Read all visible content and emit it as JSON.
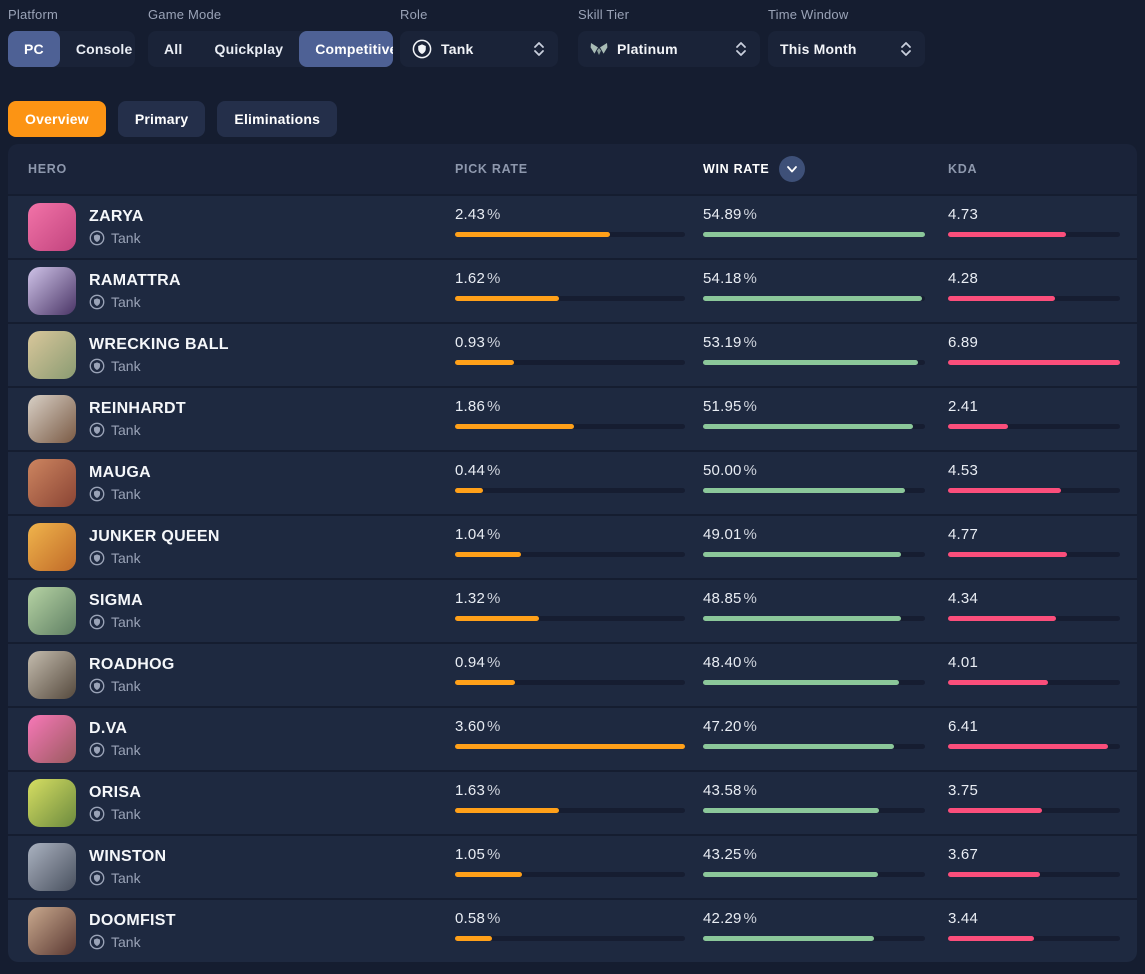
{
  "filters": {
    "platform": {
      "label": "Platform",
      "options": [
        "PC",
        "Console"
      ],
      "selected": "PC"
    },
    "game_mode": {
      "label": "Game Mode",
      "options": [
        "All",
        "Quickplay",
        "Competitive"
      ],
      "selected": "Competitive"
    },
    "role": {
      "label": "Role",
      "value": "Tank"
    },
    "skill_tier": {
      "label": "Skill Tier",
      "value": "Platinum"
    },
    "time_window": {
      "label": "Time Window",
      "value": "This Month"
    }
  },
  "tabs": [
    {
      "label": "Overview",
      "active": true
    },
    {
      "label": "Primary",
      "active": false
    },
    {
      "label": "Eliminations",
      "active": false
    }
  ],
  "table": {
    "columns": {
      "hero": "HERO",
      "pick": "PICK RATE",
      "win": "WIN RATE",
      "kda": "KDA"
    },
    "sorted_by": "WIN RATE",
    "sort_direction": "descending",
    "percent_suffix": "%",
    "rows": [
      {
        "name": "ZARYA",
        "role": "Tank",
        "pick": "2.43",
        "win": "54.89",
        "kda": "4.73",
        "avatar": [
          "#f273a8",
          "#c2447e"
        ]
      },
      {
        "name": "RAMATTRA",
        "role": "Tank",
        "pick": "1.62",
        "win": "54.18",
        "kda": "4.28",
        "avatar": [
          "#cfc3e8",
          "#4a3566"
        ]
      },
      {
        "name": "WRECKING BALL",
        "role": "Tank",
        "pick": "0.93",
        "win": "53.19",
        "kda": "6.89",
        "avatar": [
          "#d9c79b",
          "#8a9b72"
        ]
      },
      {
        "name": "REINHARDT",
        "role": "Tank",
        "pick": "1.86",
        "win": "51.95",
        "kda": "2.41",
        "avatar": [
          "#d8d0c6",
          "#7a5a44"
        ]
      },
      {
        "name": "MAUGA",
        "role": "Tank",
        "pick": "0.44",
        "win": "50.00",
        "kda": "4.53",
        "avatar": [
          "#cd8560",
          "#8a4434"
        ]
      },
      {
        "name": "JUNKER QUEEN",
        "role": "Tank",
        "pick": "1.04",
        "win": "49.01",
        "kda": "4.77",
        "avatar": [
          "#f0b44c",
          "#c06a28"
        ]
      },
      {
        "name": "SIGMA",
        "role": "Tank",
        "pick": "1.32",
        "win": "48.85",
        "kda": "4.34",
        "avatar": [
          "#b6d3a4",
          "#5f7f63"
        ]
      },
      {
        "name": "ROADHOG",
        "role": "Tank",
        "pick": "0.94",
        "win": "48.40",
        "kda": "4.01",
        "avatar": [
          "#c4bcae",
          "#55493d"
        ]
      },
      {
        "name": "D.VA",
        "role": "Tank",
        "pick": "3.60",
        "win": "47.20",
        "kda": "6.41",
        "avatar": [
          "#f778b8",
          "#9a5a5e"
        ]
      },
      {
        "name": "ORISA",
        "role": "Tank",
        "pick": "1.63",
        "win": "43.58",
        "kda": "3.75",
        "avatar": [
          "#d6de62",
          "#6c8a3e"
        ]
      },
      {
        "name": "WINSTON",
        "role": "Tank",
        "pick": "1.05",
        "win": "43.25",
        "kda": "3.67",
        "avatar": [
          "#aab2c0",
          "#49505e"
        ]
      },
      {
        "name": "DOOMFIST",
        "role": "Tank",
        "pick": "0.58",
        "win": "42.29",
        "kda": "3.44",
        "avatar": [
          "#c9a98e",
          "#5a3832"
        ]
      }
    ]
  },
  "colors": {
    "pick_bar": "#FFA019",
    "win_bar": "#8BC79A",
    "kda_bar": "#FB4E7B",
    "accent_orange": "#FC9414",
    "selected_segment": "#4E6195"
  }
}
